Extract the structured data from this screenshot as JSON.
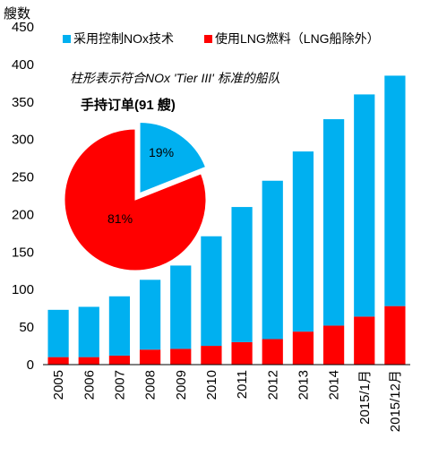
{
  "chart_data": {
    "type": "bar",
    "stacked": true,
    "ylabel": "艘数",
    "ylim": [
      0,
      450
    ],
    "yticks": [
      0,
      50,
      100,
      150,
      200,
      250,
      300,
      350,
      400,
      450
    ],
    "grid": false,
    "legend_position": "top",
    "categories": [
      "2005",
      "2006",
      "2007",
      "2008",
      "2009",
      "2010",
      "2011",
      "2012",
      "2013",
      "2014",
      "2015/1月",
      "2015/12月"
    ],
    "series": [
      {
        "name": "使用LNG燃料（LNG船除外）",
        "color": "#ff0000",
        "values": [
          10,
          10,
          12,
          20,
          21,
          25,
          30,
          34,
          44,
          52,
          64,
          78
        ]
      },
      {
        "name": "采用控制NOx技术",
        "color": "#00b0f0",
        "values": [
          63,
          67,
          79,
          93,
          111,
          146,
          180,
          211,
          240,
          275,
          296,
          307
        ]
      }
    ],
    "annotation": "柱形表示符合NOx 'Tier III' 标准的船队",
    "inset_pie": {
      "title": "手持订单(91 艘)",
      "slices": [
        {
          "label": "19%",
          "value": 19,
          "color": "#00b0f0"
        },
        {
          "label": "81%",
          "value": 81,
          "color": "#ff0000"
        }
      ]
    }
  }
}
